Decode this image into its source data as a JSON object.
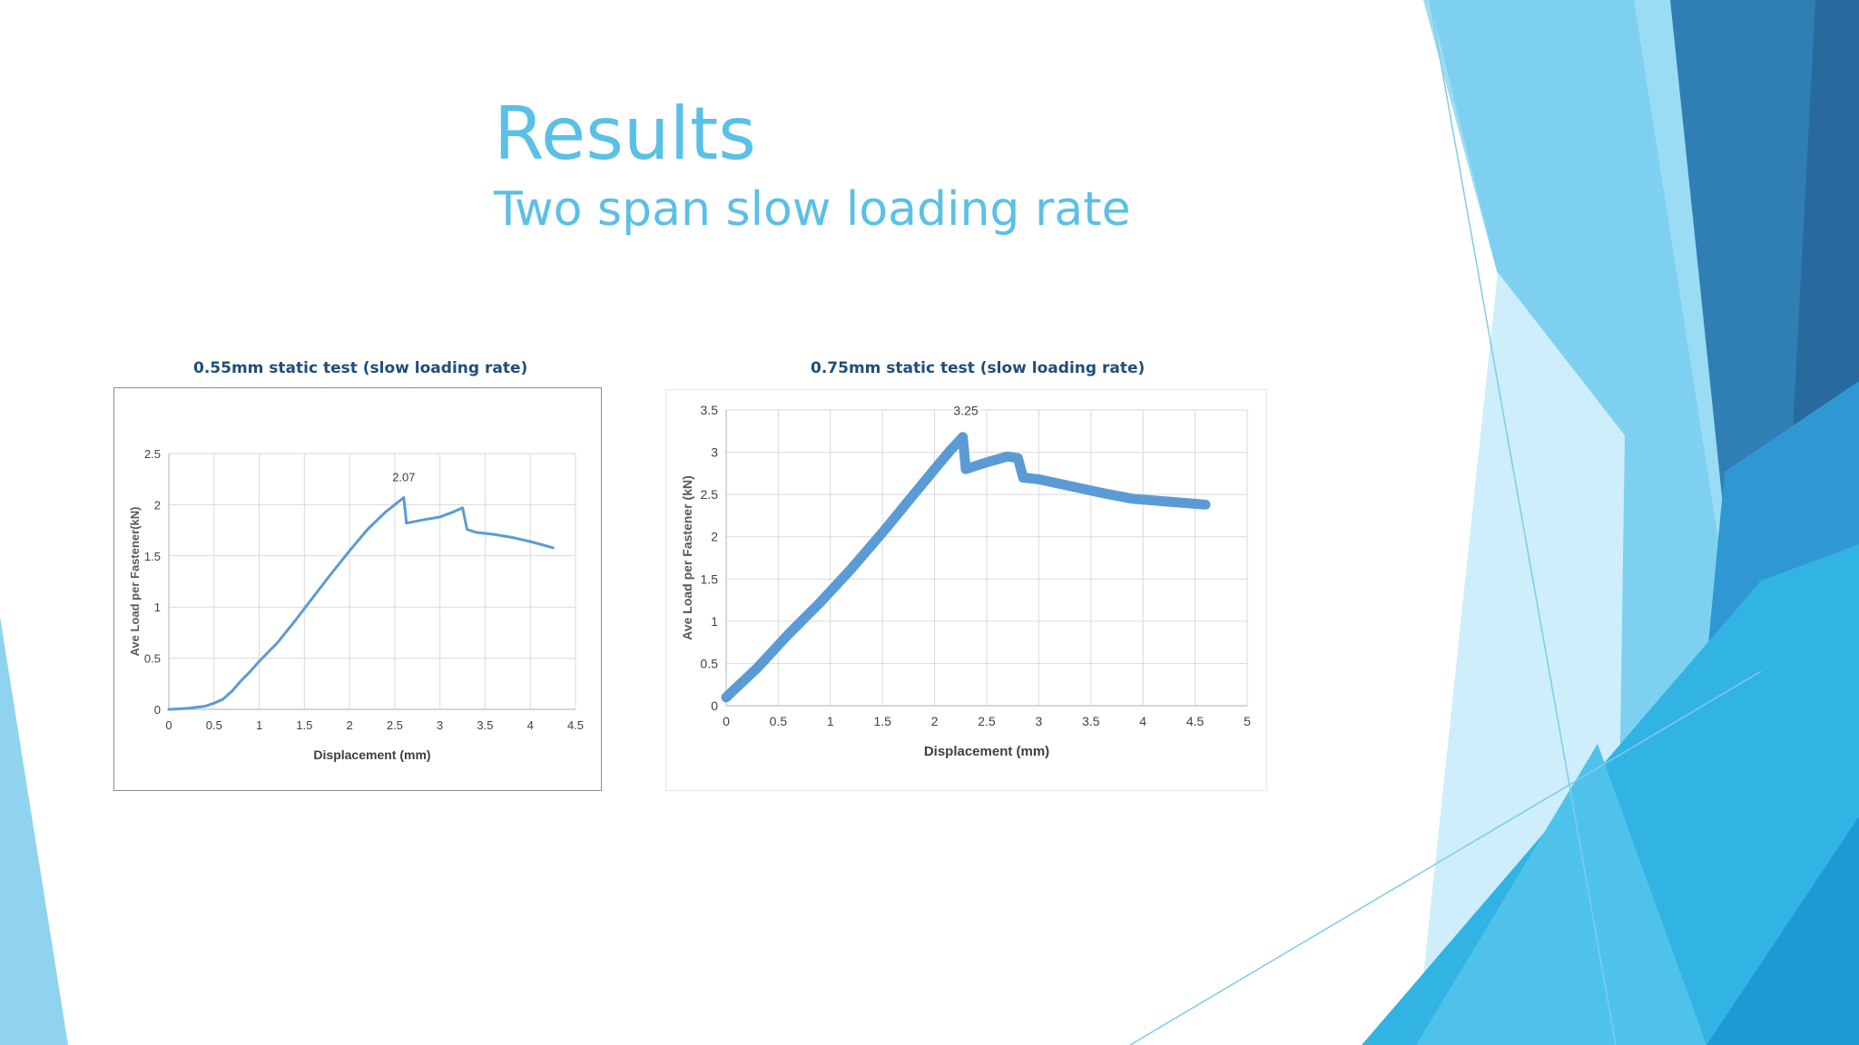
{
  "slide": {
    "title": "Results",
    "subtitle": "Two span slow loading rate"
  },
  "colors": {
    "title": "#5bc0e6",
    "heading": "#1f4e79",
    "series": "#5b9bd5",
    "grid": "#d9d9d9"
  },
  "chart_data": [
    {
      "type": "line",
      "title": "0.55mm static test (slow loading rate)",
      "xlabel": "Displacement (mm)",
      "ylabel": "Ave Load per Fastener(kN)",
      "xlim": [
        0,
        4.5
      ],
      "ylim": [
        0,
        2.5
      ],
      "xticks": [
        "0",
        "0.5",
        "1",
        "1.5",
        "2",
        "2.5",
        "3",
        "3.5",
        "4",
        "4.5"
      ],
      "yticks": [
        "0",
        "0.5",
        "1",
        "1.5",
        "2",
        "2.5"
      ],
      "grid": true,
      "annotation": {
        "text": "2.07",
        "x": 2.6,
        "y": 2.07
      },
      "series": [
        {
          "x": [
            0,
            0.2,
            0.4,
            0.5,
            0.6,
            0.7,
            0.8,
            0.9,
            1.0,
            1.2,
            1.4,
            1.6,
            1.8,
            2.0,
            2.2,
            2.4,
            2.6,
            2.63,
            2.8,
            3.0,
            3.15,
            3.25,
            3.3,
            3.4,
            3.6,
            3.8,
            4.0,
            4.25
          ],
          "y": [
            0,
            0.01,
            0.03,
            0.06,
            0.1,
            0.18,
            0.28,
            0.37,
            0.47,
            0.65,
            0.87,
            1.1,
            1.33,
            1.55,
            1.76,
            1.93,
            2.07,
            1.82,
            1.85,
            1.88,
            1.93,
            1.97,
            1.76,
            1.73,
            1.71,
            1.68,
            1.64,
            1.58
          ]
        }
      ]
    },
    {
      "type": "line",
      "title": "0.75mm static test (slow loading rate)",
      "xlabel": "Displacement (mm)",
      "ylabel": "Ave Load per Fastener (kN)",
      "xlim": [
        0,
        5
      ],
      "ylim": [
        0,
        3.5
      ],
      "xticks": [
        "0",
        "0.5",
        "1",
        "1.5",
        "2",
        "2.5",
        "3",
        "3.5",
        "4",
        "4.5",
        "5"
      ],
      "yticks": [
        "0",
        "0.5",
        "1",
        "1.5",
        "2",
        "2.5",
        "3",
        "3.5"
      ],
      "grid": true,
      "annotation": {
        "text": "3.25",
        "x": 2.3,
        "y": 3.25
      },
      "series": [
        {
          "x": [
            0,
            0.3,
            0.6,
            0.9,
            1.2,
            1.5,
            1.8,
            2.0,
            2.15,
            2.27,
            2.3,
            2.5,
            2.7,
            2.8,
            2.85,
            3.0,
            3.3,
            3.6,
            3.9,
            4.2,
            4.6
          ],
          "y": [
            0.1,
            0.45,
            0.85,
            1.22,
            1.62,
            2.05,
            2.5,
            2.8,
            3.02,
            3.18,
            2.8,
            2.88,
            2.95,
            2.93,
            2.7,
            2.68,
            2.6,
            2.52,
            2.45,
            2.42,
            2.38
          ]
        }
      ]
    }
  ]
}
